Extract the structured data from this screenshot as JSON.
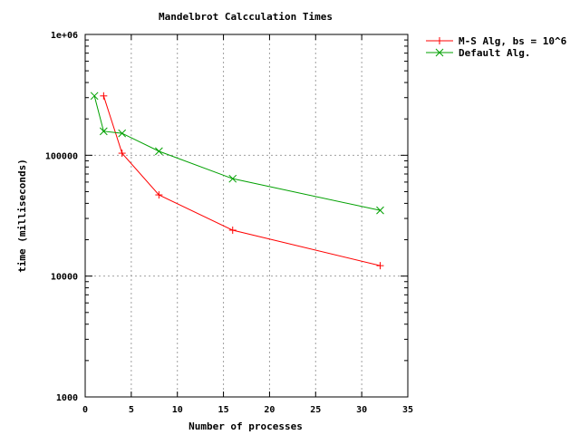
{
  "chart_data": {
    "type": "line",
    "title": "Mandelbrot Calcculation Times",
    "xlabel": "Number of processes",
    "ylabel": "time (milliseconds)",
    "xlim": [
      0,
      35
    ],
    "ylim": [
      1000,
      1000000
    ],
    "y_scale": "log",
    "grid": true,
    "legend_position": "top-right-outside",
    "x_ticks": [
      0,
      5,
      10,
      15,
      20,
      25,
      30,
      35
    ],
    "x_tick_labels": [
      "0",
      "5",
      "10",
      "15",
      "20",
      "25",
      "30",
      "35"
    ],
    "y_ticks": [
      1000,
      10000,
      100000,
      1000000
    ],
    "y_tick_labels": [
      "1000",
      "10000",
      "100000",
      "1e+06"
    ],
    "series": [
      {
        "name": "M-S Alg, bs = 10^6",
        "color": "#ff0000",
        "marker": "plus",
        "x": [
          2,
          4,
          8,
          16,
          32
        ],
        "y": [
          310000,
          104000,
          47000,
          24000,
          12200
        ]
      },
      {
        "name": "Default Alg.",
        "color": "#00a000",
        "marker": "cross",
        "x": [
          1,
          2,
          4,
          8,
          16,
          32
        ],
        "y": [
          310000,
          158000,
          152000,
          108000,
          64000,
          35000
        ]
      }
    ]
  }
}
